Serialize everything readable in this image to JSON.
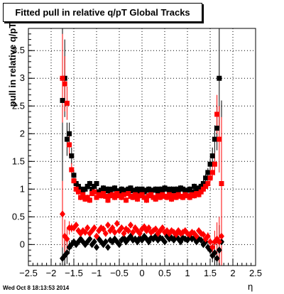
{
  "stamp": "Wed Oct  8 18:13:53 2014",
  "chart_data": {
    "type": "scatter",
    "title": "Fitted pull in relative q/pT  Global Tracks",
    "xlabel": "η",
    "ylabel": "pull in relative q/pT",
    "xlim": [
      -2.5,
      2.5
    ],
    "ylim": [
      -0.38,
      3.9
    ],
    "xticks": [
      "−2.5",
      "−2",
      "−1.5",
      "−1",
      "−0.5",
      "0",
      "0.5",
      "1",
      "1.5",
      "2",
      "2.5"
    ],
    "yticks": [
      "0",
      "0.5",
      "1",
      "1.5",
      "2",
      "2.5",
      "3",
      "3.5"
    ],
    "grid": true,
    "x": [
      -1.75,
      -1.7,
      -1.65,
      -1.6,
      -1.55,
      -1.5,
      -1.45,
      -1.4,
      -1.35,
      -1.3,
      -1.25,
      -1.2,
      -1.15,
      -1.1,
      -1.05,
      -1.0,
      -0.95,
      -0.9,
      -0.85,
      -0.8,
      -0.75,
      -0.7,
      -0.65,
      -0.6,
      -0.55,
      -0.5,
      -0.45,
      -0.4,
      -0.35,
      -0.3,
      -0.25,
      -0.2,
      -0.15,
      -0.1,
      -0.05,
      0.0,
      0.05,
      0.1,
      0.15,
      0.2,
      0.25,
      0.3,
      0.35,
      0.4,
      0.45,
      0.5,
      0.55,
      0.6,
      0.65,
      0.7,
      0.75,
      0.8,
      0.85,
      0.9,
      0.95,
      1.0,
      1.05,
      1.1,
      1.15,
      1.2,
      1.25,
      1.3,
      1.35,
      1.4,
      1.45,
      1.5,
      1.55,
      1.6,
      1.65,
      1.7,
      1.75
    ],
    "series": [
      {
        "marker": "square",
        "color": "#000000",
        "values": [
          2.6,
          3.0,
          1.9,
          2.0,
          1.6,
          1.25,
          1.1,
          1.05,
          1.0,
          0.98,
          1.0,
          1.05,
          1.1,
          1.0,
          1.05,
          1.1,
          0.95,
          0.98,
          1.02,
          0.97,
          1.0,
          0.95,
          1.0,
          1.02,
          0.97,
          0.92,
          1.0,
          0.98,
          0.95,
          1.0,
          1.02,
          0.97,
          0.98,
          1.0,
          0.96,
          1.0,
          0.95,
          0.98,
          1.0,
          0.97,
          0.98,
          1.0,
          0.95,
          1.0,
          0.98,
          1.02,
          1.0,
          0.96,
          1.0,
          0.97,
          1.0,
          0.98,
          1.02,
          1.0,
          0.97,
          0.98,
          1.0,
          0.95,
          1.05,
          1.0,
          1.02,
          1.05,
          1.1,
          1.2,
          1.3,
          1.45,
          1.6,
          1.9,
          2.1,
          3.0,
          1.1
        ],
        "errors": [
          1.5,
          0.7,
          0.3,
          0.2,
          0.15,
          0.1,
          0.08,
          0.06,
          0.06,
          0.05,
          0.05,
          0.05,
          0.05,
          0.05,
          0.05,
          0.05,
          0.05,
          0.05,
          0.05,
          0.05,
          0.05,
          0.05,
          0.05,
          0.05,
          0.05,
          0.05,
          0.05,
          0.05,
          0.05,
          0.05,
          0.05,
          0.05,
          0.05,
          0.05,
          0.05,
          0.05,
          0.05,
          0.05,
          0.05,
          0.05,
          0.05,
          0.05,
          0.05,
          0.05,
          0.05,
          0.05,
          0.05,
          0.05,
          0.05,
          0.05,
          0.05,
          0.05,
          0.05,
          0.05,
          0.05,
          0.05,
          0.05,
          0.05,
          0.05,
          0.05,
          0.05,
          0.06,
          0.06,
          0.07,
          0.08,
          0.1,
          0.15,
          0.25,
          0.4,
          0.9,
          1.5
        ]
      },
      {
        "marker": "square",
        "color": "#ff0000",
        "values": [
          3.0,
          2.9,
          2.55,
          1.8,
          1.35,
          1.15,
          1.0,
          0.95,
          0.85,
          0.9,
          0.82,
          0.85,
          0.8,
          0.92,
          0.95,
          0.85,
          0.9,
          0.88,
          0.92,
          0.87,
          0.8,
          0.88,
          0.9,
          0.85,
          0.92,
          0.88,
          0.85,
          0.9,
          0.8,
          0.92,
          0.87,
          0.85,
          0.9,
          0.82,
          0.88,
          0.9,
          0.85,
          0.8,
          0.88,
          0.9,
          0.85,
          0.82,
          0.88,
          0.85,
          0.9,
          0.87,
          0.85,
          0.9,
          0.82,
          0.88,
          0.85,
          0.9,
          0.87,
          0.85,
          0.9,
          0.88,
          0.85,
          0.9,
          0.88,
          0.92,
          0.9,
          0.95,
          1.0,
          1.05,
          1.1,
          1.2,
          1.3,
          1.45,
          2.35,
          1.9,
          1.1
        ],
        "errors": [
          0.8,
          0.5,
          0.3,
          0.2,
          0.12,
          0.08,
          0.06,
          0.05,
          0.05,
          0.05,
          0.05,
          0.05,
          0.05,
          0.05,
          0.05,
          0.05,
          0.05,
          0.05,
          0.05,
          0.05,
          0.05,
          0.05,
          0.05,
          0.05,
          0.05,
          0.05,
          0.05,
          0.05,
          0.05,
          0.05,
          0.05,
          0.05,
          0.05,
          0.05,
          0.05,
          0.05,
          0.05,
          0.05,
          0.05,
          0.05,
          0.05,
          0.05,
          0.05,
          0.05,
          0.05,
          0.05,
          0.05,
          0.05,
          0.05,
          0.05,
          0.05,
          0.05,
          0.05,
          0.05,
          0.05,
          0.05,
          0.05,
          0.05,
          0.05,
          0.05,
          0.05,
          0.05,
          0.05,
          0.06,
          0.07,
          0.08,
          0.12,
          0.2,
          0.35,
          0.6,
          1.2
        ]
      },
      {
        "marker": "diamond",
        "color": "#000000",
        "values": [
          -0.25,
          -0.2,
          -0.15,
          -0.05,
          0.0,
          0.05,
          0.0,
          0.05,
          0.1,
          0.05,
          0.0,
          0.05,
          0.1,
          0.0,
          0.05,
          -0.05,
          0.1,
          0.05,
          0.0,
          0.05,
          -0.05,
          0.08,
          0.05,
          0.1,
          0.05,
          0.0,
          0.08,
          0.12,
          0.05,
          0.1,
          0.15,
          0.08,
          0.1,
          0.05,
          0.12,
          0.08,
          0.15,
          0.1,
          0.05,
          0.12,
          0.1,
          0.15,
          0.08,
          0.12,
          0.1,
          0.05,
          0.15,
          0.1,
          0.12,
          0.08,
          0.15,
          0.1,
          0.05,
          0.12,
          0.1,
          0.08,
          0.15,
          0.1,
          0.12,
          0.05,
          0.1,
          0.08,
          0.0,
          0.05,
          -0.05,
          -0.1,
          -0.2,
          -0.15,
          -0.25,
          -0.1,
          0.05
        ],
        "errors": [
          0.6,
          0.3,
          0.2,
          0.12,
          0.08,
          0.06,
          0.05,
          0.05,
          0.05,
          0.05,
          0.05,
          0.05,
          0.05,
          0.05,
          0.05,
          0.05,
          0.05,
          0.05,
          0.05,
          0.05,
          0.05,
          0.05,
          0.05,
          0.05,
          0.05,
          0.05,
          0.05,
          0.05,
          0.05,
          0.05,
          0.05,
          0.05,
          0.05,
          0.05,
          0.05,
          0.05,
          0.05,
          0.05,
          0.05,
          0.05,
          0.05,
          0.05,
          0.05,
          0.05,
          0.05,
          0.05,
          0.05,
          0.05,
          0.05,
          0.05,
          0.05,
          0.05,
          0.05,
          0.05,
          0.05,
          0.05,
          0.05,
          0.05,
          0.05,
          0.05,
          0.05,
          0.05,
          0.05,
          0.06,
          0.07,
          0.08,
          0.12,
          0.2,
          0.3,
          0.45,
          0.8
        ]
      },
      {
        "marker": "diamond",
        "color": "#ff0000",
        "values": [
          0.55,
          0.15,
          0.1,
          0.3,
          0.3,
          0.3,
          0.35,
          0.25,
          0.2,
          0.25,
          0.22,
          0.3,
          0.2,
          0.25,
          0.3,
          0.15,
          0.25,
          0.3,
          0.28,
          0.2,
          0.35,
          0.25,
          0.3,
          0.22,
          0.38,
          0.25,
          0.3,
          0.2,
          0.28,
          0.25,
          0.35,
          0.22,
          0.3,
          0.25,
          0.2,
          0.28,
          0.32,
          0.25,
          0.3,
          0.22,
          0.25,
          0.28,
          0.2,
          0.25,
          0.3,
          0.22,
          0.25,
          0.2,
          0.25,
          0.22,
          0.18,
          0.25,
          0.2,
          0.22,
          0.25,
          0.2,
          0.18,
          0.22,
          0.2,
          0.15,
          0.25,
          0.2,
          0.18,
          0.1,
          0.15,
          0.05,
          -0.05,
          0.05,
          0.1,
          0.05,
          0.15
        ],
        "errors": [
          0.6,
          0.3,
          0.2,
          0.12,
          0.08,
          0.06,
          0.05,
          0.05,
          0.05,
          0.05,
          0.05,
          0.05,
          0.05,
          0.05,
          0.05,
          0.05,
          0.05,
          0.05,
          0.05,
          0.05,
          0.05,
          0.05,
          0.05,
          0.05,
          0.05,
          0.05,
          0.05,
          0.05,
          0.05,
          0.05,
          0.05,
          0.05,
          0.05,
          0.05,
          0.05,
          0.05,
          0.05,
          0.05,
          0.05,
          0.05,
          0.05,
          0.05,
          0.05,
          0.05,
          0.05,
          0.05,
          0.05,
          0.05,
          0.05,
          0.05,
          0.05,
          0.05,
          0.05,
          0.05,
          0.05,
          0.05,
          0.05,
          0.05,
          0.05,
          0.05,
          0.05,
          0.05,
          0.05,
          0.06,
          0.07,
          0.08,
          0.12,
          0.2,
          0.3,
          0.45,
          0.8
        ]
      }
    ]
  }
}
